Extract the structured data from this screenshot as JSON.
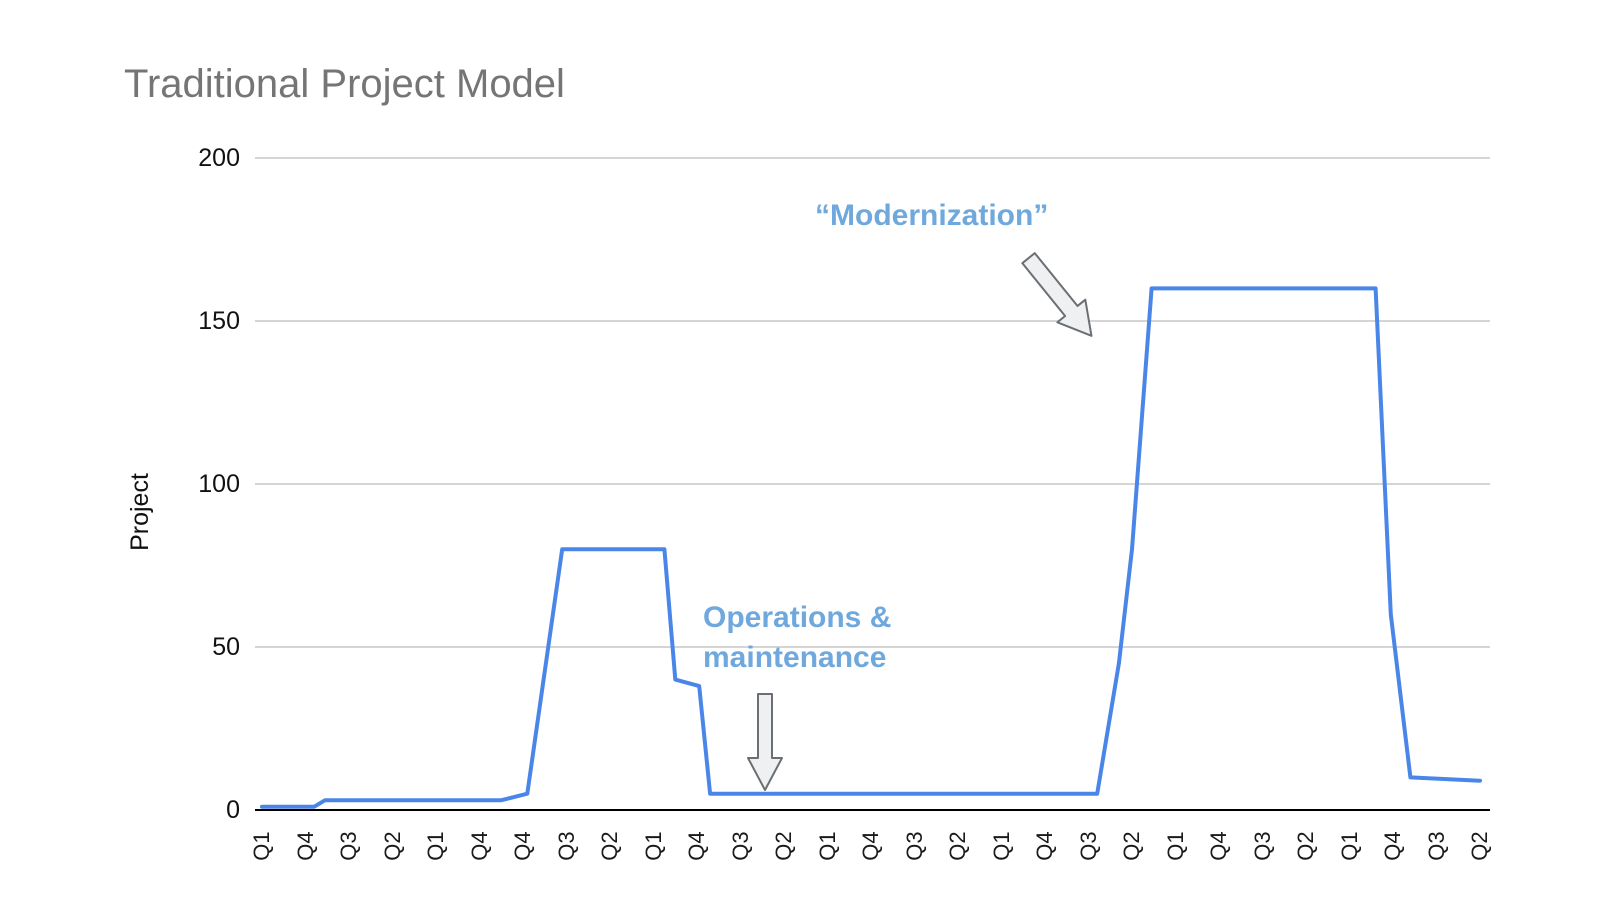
{
  "colors": {
    "line": "#4a86e8",
    "title_text": "#757575",
    "annotation_text": "#6fa8dc",
    "grid": "#d5d5d5",
    "axis": "#000000",
    "arrow_fill": "#eef0f2",
    "arrow_stroke": "#6b6f73"
  },
  "chart_data": {
    "type": "line",
    "title": "Traditional Project Model",
    "xlabel": "",
    "ylabel": "Project",
    "ylim": [
      0,
      200
    ],
    "yticks": [
      0,
      50,
      100,
      150,
      200
    ],
    "grid": true,
    "legend": "none",
    "x_tick_labels": [
      "Q1",
      "Q4",
      "Q3",
      "Q2",
      "Q1",
      "Q4",
      "Q4",
      "Q3",
      "Q2",
      "Q1",
      "Q4",
      "Q3",
      "Q2",
      "Q1",
      "Q4",
      "Q3",
      "Q2",
      "Q1",
      "Q4",
      "Q3",
      "Q2",
      "Q1",
      "Q4",
      "Q3",
      "Q2",
      "Q1",
      "Q4",
      "Q3",
      "Q2"
    ],
    "series": [
      {
        "name": "Project",
        "points": [
          [
            0,
            1
          ],
          [
            1.2,
            1
          ],
          [
            1.45,
            3
          ],
          [
            5.5,
            3
          ],
          [
            6.1,
            5
          ],
          [
            6.9,
            80
          ],
          [
            9.25,
            80
          ],
          [
            9.5,
            40
          ],
          [
            10.05,
            38
          ],
          [
            10.3,
            5
          ],
          [
            19.2,
            5
          ],
          [
            19.7,
            45
          ],
          [
            20.0,
            80
          ],
          [
            20.45,
            160
          ],
          [
            25.6,
            160
          ],
          [
            25.95,
            60
          ],
          [
            26.4,
            10
          ],
          [
            28,
            9
          ]
        ]
      }
    ],
    "annotations": [
      {
        "text": "“Modernization”"
      },
      {
        "text": "Operations &\nmaintenance"
      }
    ]
  }
}
